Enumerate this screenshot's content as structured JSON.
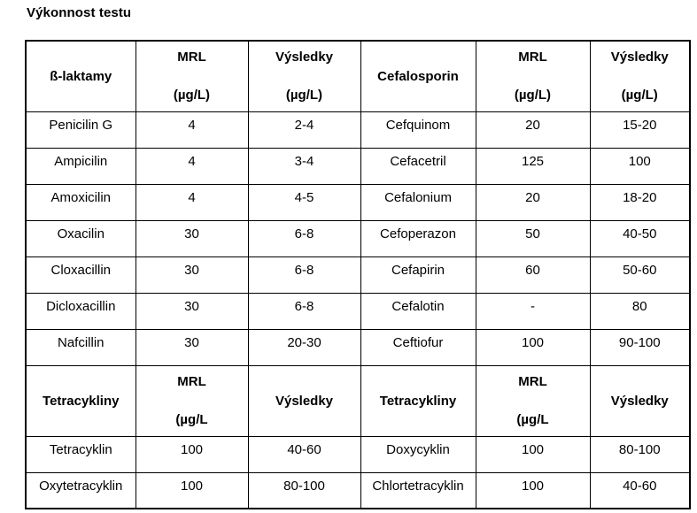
{
  "page": {
    "background_color": "#ffffff",
    "text_color": "#000000",
    "border_color": "#000000"
  },
  "title": "Výkonnost testu",
  "table": {
    "sections": [
      {
        "header": [
          {
            "lines": [
              "ß-laktamy"
            ]
          },
          {
            "lines": [
              "MRL",
              "(µg/L)"
            ]
          },
          {
            "lines": [
              "Výsledky",
              "(µg/L)"
            ]
          },
          {
            "lines": [
              "Cefalosporin"
            ]
          },
          {
            "lines": [
              "MRL",
              "(µg/L)"
            ]
          },
          {
            "lines": [
              "Výsledky",
              "(µg/L)"
            ]
          }
        ],
        "rows": [
          [
            "Penicilin G",
            "4",
            "2-4",
            "Cefquinom",
            "20",
            "15-20"
          ],
          [
            "Ampicilin",
            "4",
            "3-4",
            "Cefacetril",
            "125",
            "100"
          ],
          [
            "Amoxicilin",
            "4",
            "4-5",
            "Cefalonium",
            "20",
            "18-20"
          ],
          [
            "Oxacilin",
            "30",
            "6-8",
            "Cefoperazon",
            "50",
            "40-50"
          ],
          [
            "Cloxacillin",
            "30",
            "6-8",
            "Cefapirin",
            "60",
            "50-60"
          ],
          [
            "Dicloxacillin",
            "30",
            "6-8",
            "Cefalotin",
            "-",
            "80"
          ],
          [
            "Nafcillin",
            "30",
            "20-30",
            "Ceftiofur",
            "100",
            "90-100"
          ]
        ]
      },
      {
        "header": [
          {
            "lines": [
              "Tetracykliny"
            ]
          },
          {
            "lines": [
              "MRL",
              "(µg/L"
            ]
          },
          {
            "lines": [
              "Výsledky"
            ]
          },
          {
            "lines": [
              "Tetracykliny"
            ]
          },
          {
            "lines": [
              "MRL",
              "(µg/L"
            ]
          },
          {
            "lines": [
              "Výsledky"
            ]
          }
        ],
        "rows": [
          [
            "Tetracyklin",
            "100",
            "40-60",
            "Doxycyklin",
            "100",
            "80-100"
          ],
          [
            "Oxytetracyklin",
            "100",
            "80-100",
            "Chlortetracyklin",
            "100",
            "40-60"
          ]
        ]
      }
    ]
  }
}
